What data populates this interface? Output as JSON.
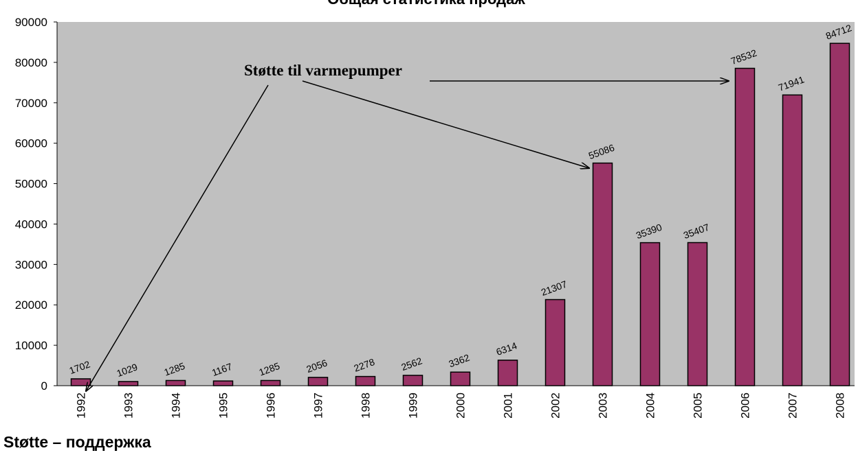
{
  "chart_data": {
    "type": "bar",
    "title": "Общая статистика продаж",
    "annotation": "Støtte til varmepumper",
    "footer": "Støtte – поддержка",
    "categories": [
      "1992",
      "1993",
      "1994",
      "1995",
      "1996",
      "1997",
      "1998",
      "1999",
      "2000",
      "2001",
      "2002",
      "2003",
      "2004",
      "2005",
      "2006",
      "2007",
      "2008"
    ],
    "values": [
      1702,
      1029,
      1285,
      1167,
      1285,
      2056,
      2278,
      2562,
      3362,
      6314,
      21307,
      55086,
      35390,
      35407,
      78532,
      71941,
      84712
    ],
    "color": "#993366",
    "ylim": [
      0,
      90000
    ],
    "yticks": [
      0,
      10000,
      20000,
      30000,
      40000,
      50000,
      60000,
      70000,
      80000,
      90000
    ],
    "grid": false
  }
}
